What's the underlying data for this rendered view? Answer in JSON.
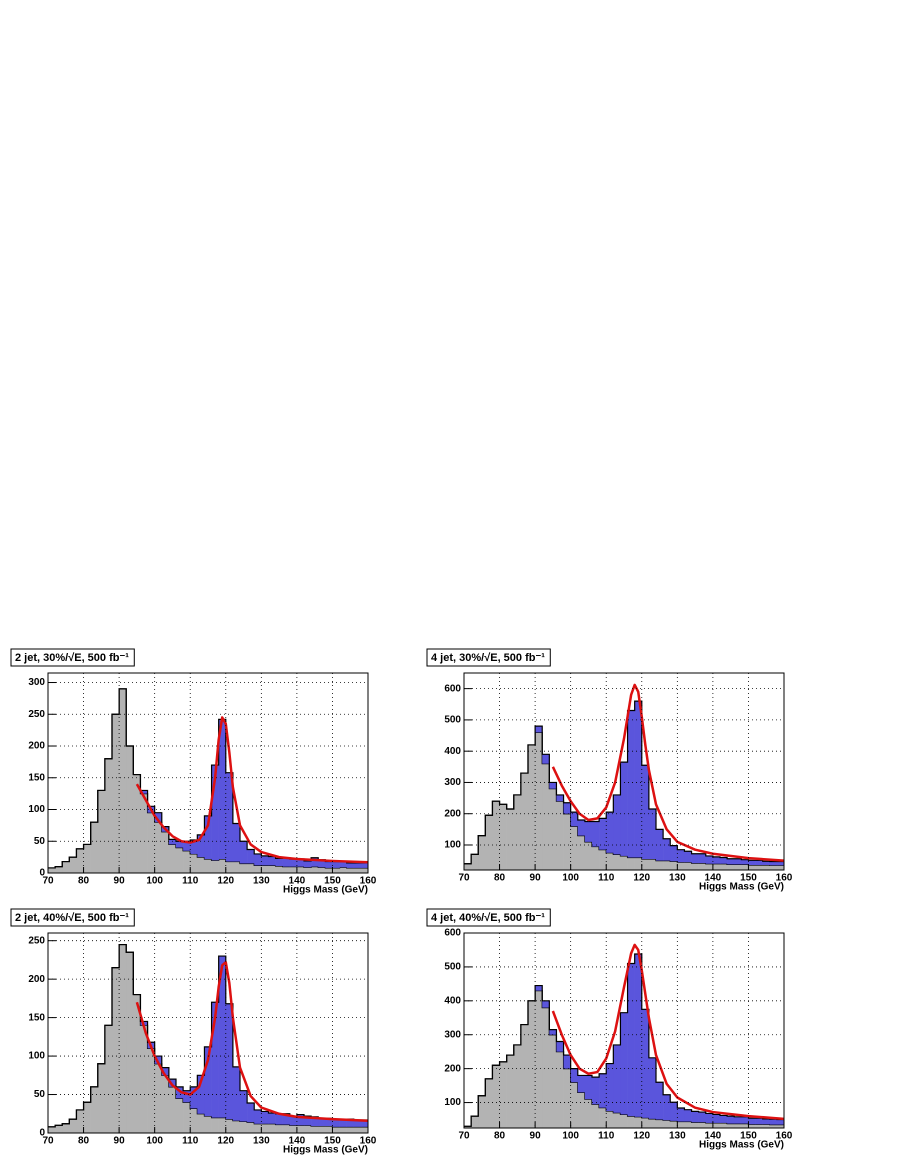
{
  "chart_data": [
    {
      "type": "histogram",
      "title": "2 jet, 30%/√E, 500 fb⁻¹",
      "x_label": "Higgs Mass (GeV)",
      "bins": [
        70,
        72,
        74,
        76,
        78,
        80,
        82,
        84,
        86,
        88,
        90,
        92,
        94,
        96,
        98,
        100,
        102,
        104,
        106,
        108,
        110,
        112,
        114,
        116,
        118,
        120,
        122,
        124,
        126,
        128,
        130,
        132,
        134,
        136,
        138,
        140,
        142,
        144,
        146,
        148,
        150,
        152,
        154,
        156,
        158,
        160
      ],
      "series": [
        {
          "color": "#b3b3b3",
          "values": [
            8,
            10,
            18,
            25,
            38,
            45,
            80,
            130,
            180,
            250,
            290,
            200,
            155,
            125,
            95,
            80,
            65,
            45,
            40,
            35,
            30,
            25,
            22,
            20,
            22,
            18,
            18,
            15,
            15,
            12,
            12,
            12,
            11,
            10,
            10,
            10,
            9,
            10,
            9,
            8,
            8,
            9,
            8,
            8,
            8
          ]
        },
        {
          "color": "#5a55dc",
          "stacked": true,
          "values": [
            0,
            0,
            0,
            0,
            0,
            0,
            0,
            0,
            0,
            0,
            0,
            0,
            0,
            5,
            10,
            15,
            8,
            8,
            10,
            15,
            22,
            35,
            68,
            150,
            220,
            140,
            60,
            35,
            22,
            18,
            15,
            14,
            12,
            14,
            12,
            12,
            10,
            14,
            12,
            10,
            10,
            9,
            8,
            8,
            8
          ]
        }
      ],
      "fit": {
        "color": "#dd1111",
        "x": [
          95,
          97.5,
          100,
          102.5,
          105,
          107.5,
          110,
          112.5,
          115,
          117,
          118,
          119,
          120,
          121,
          122,
          124,
          127,
          130,
          135,
          140,
          150,
          160
        ],
        "values": [
          140,
          115,
          90,
          72,
          58,
          50,
          48,
          52,
          75,
          150,
          210,
          245,
          235,
          190,
          135,
          75,
          45,
          33,
          25,
          22,
          19,
          17
        ]
      },
      "xlim": [
        70,
        160
      ],
      "ylim": [
        0,
        315
      ],
      "xticks": [
        70,
        80,
        90,
        100,
        110,
        120,
        130,
        140,
        150,
        160
      ],
      "yticks": [
        0,
        50,
        100,
        150,
        200,
        250,
        300
      ],
      "grid": true
    },
    {
      "type": "histogram",
      "title": "4 jet, 30%/√E, 500 fb⁻¹",
      "x_label": "Higgs Mass (GeV)",
      "bins": [
        70,
        72,
        74,
        76,
        78,
        80,
        82,
        84,
        86,
        88,
        90,
        92,
        94,
        96,
        98,
        100,
        102,
        104,
        106,
        108,
        110,
        112,
        114,
        116,
        118,
        120,
        122,
        124,
        126,
        128,
        130,
        132,
        134,
        136,
        138,
        140,
        142,
        144,
        146,
        148,
        150,
        152,
        154,
        156,
        158,
        160
      ],
      "series": [
        {
          "color": "#b3b3b3",
          "values": [
            40,
            70,
            130,
            195,
            240,
            230,
            215,
            260,
            330,
            420,
            460,
            360,
            280,
            240,
            200,
            160,
            130,
            110,
            95,
            85,
            75,
            70,
            65,
            60,
            60,
            55,
            55,
            50,
            50,
            48,
            45,
            45,
            42,
            42,
            40,
            40,
            40,
            38,
            38,
            38,
            36,
            36,
            36,
            35,
            35
          ]
        },
        {
          "color": "#5a55dc",
          "stacked": true,
          "values": [
            0,
            0,
            0,
            0,
            0,
            0,
            0,
            0,
            0,
            0,
            20,
            30,
            20,
            20,
            35,
            45,
            50,
            65,
            80,
            100,
            130,
            190,
            300,
            470,
            500,
            300,
            160,
            100,
            70,
            50,
            40,
            35,
            30,
            30,
            25,
            22,
            20,
            18,
            18,
            15,
            15,
            15,
            12,
            12,
            12
          ]
        }
      ],
      "fit": {
        "color": "#dd1111",
        "x": [
          95,
          97.5,
          100,
          102.5,
          105,
          107.5,
          110,
          112.5,
          115,
          117,
          118,
          119,
          120,
          121,
          122,
          124,
          127,
          130,
          135,
          140,
          150,
          160
        ],
        "values": [
          350,
          290,
          240,
          200,
          180,
          185,
          220,
          300,
          440,
          580,
          612,
          590,
          510,
          420,
          340,
          230,
          150,
          110,
          85,
          72,
          58,
          50
        ]
      },
      "xlim": [
        70,
        160
      ],
      "ylim": [
        20,
        650
      ],
      "xticks": [
        70,
        80,
        90,
        100,
        110,
        120,
        130,
        140,
        150,
        160
      ],
      "yticks": [
        100,
        200,
        300,
        400,
        500,
        600
      ],
      "grid": true
    },
    {
      "type": "histogram",
      "title": "2 jet, 40%/√E, 500 fb⁻¹",
      "x_label": "Higgs Mass (GeV)",
      "bins": [
        70,
        72,
        74,
        76,
        78,
        80,
        82,
        84,
        86,
        88,
        90,
        92,
        94,
        96,
        98,
        100,
        102,
        104,
        106,
        108,
        110,
        112,
        114,
        116,
        118,
        120,
        122,
        124,
        126,
        128,
        130,
        132,
        134,
        136,
        138,
        140,
        142,
        144,
        146,
        148,
        150,
        152,
        154,
        156,
        158,
        160
      ],
      "series": [
        {
          "color": "#b3b3b3",
          "values": [
            8,
            10,
            12,
            18,
            30,
            40,
            60,
            90,
            140,
            215,
            245,
            235,
            180,
            140,
            110,
            90,
            75,
            60,
            45,
            40,
            32,
            25,
            22,
            20,
            20,
            18,
            16,
            15,
            14,
            12,
            12,
            12,
            11,
            11,
            10,
            10,
            10,
            9,
            9,
            9,
            8,
            8,
            8,
            8,
            8
          ]
        },
        {
          "color": "#5a55dc",
          "stacked": true,
          "values": [
            0,
            0,
            0,
            0,
            0,
            0,
            0,
            0,
            0,
            0,
            0,
            0,
            0,
            5,
            8,
            10,
            10,
            10,
            15,
            15,
            28,
            50,
            90,
            150,
            210,
            150,
            70,
            40,
            25,
            18,
            16,
            14,
            14,
            14,
            12,
            14,
            12,
            12,
            10,
            10,
            10,
            10,
            10,
            9,
            9
          ]
        }
      ],
      "fit": {
        "color": "#dd1111",
        "x": [
          95,
          97.5,
          100,
          102.5,
          105,
          107.5,
          110,
          112.5,
          115,
          117,
          118,
          119,
          120,
          121,
          122,
          124,
          127,
          130,
          135,
          140,
          150,
          160
        ],
        "values": [
          170,
          130,
          100,
          78,
          62,
          53,
          50,
          60,
          95,
          150,
          190,
          218,
          222,
          195,
          150,
          85,
          48,
          33,
          25,
          21,
          18,
          16
        ]
      },
      "xlim": [
        70,
        160
      ],
      "ylim": [
        0,
        260
      ],
      "xticks": [
        70,
        80,
        90,
        100,
        110,
        120,
        130,
        140,
        150,
        160
      ],
      "yticks": [
        0,
        50,
        100,
        150,
        200,
        250
      ],
      "grid": true
    },
    {
      "type": "histogram",
      "title": "4 jet, 40%/√E, 500 fb⁻¹",
      "x_label": "Higgs Mass (GeV)",
      "bins": [
        70,
        72,
        74,
        76,
        78,
        80,
        82,
        84,
        86,
        88,
        90,
        92,
        94,
        96,
        98,
        100,
        102,
        104,
        106,
        108,
        110,
        112,
        114,
        116,
        118,
        120,
        122,
        124,
        126,
        128,
        130,
        132,
        134,
        136,
        138,
        140,
        142,
        144,
        146,
        148,
        150,
        152,
        154,
        156,
        158,
        160
      ],
      "series": [
        {
          "color": "#b3b3b3",
          "values": [
            30,
            60,
            120,
            170,
            210,
            220,
            240,
            270,
            330,
            400,
            430,
            380,
            300,
            250,
            200,
            160,
            130,
            110,
            95,
            85,
            75,
            70,
            65,
            60,
            58,
            55,
            52,
            50,
            48,
            46,
            44,
            44,
            42,
            42,
            40,
            40,
            40,
            38,
            38,
            38,
            36,
            36,
            36,
            35,
            35
          ]
        },
        {
          "color": "#5a55dc",
          "stacked": true,
          "values": [
            0,
            0,
            0,
            0,
            0,
            0,
            0,
            0,
            0,
            0,
            15,
            20,
            15,
            30,
            40,
            40,
            50,
            70,
            80,
            100,
            140,
            200,
            300,
            450,
            480,
            320,
            180,
            110,
            75,
            55,
            40,
            35,
            32,
            30,
            28,
            25,
            22,
            22,
            20,
            20,
            18,
            18,
            16,
            16,
            15
          ]
        }
      ],
      "fit": {
        "color": "#dd1111",
        "x": [
          95,
          97.5,
          100,
          102.5,
          105,
          107.5,
          110,
          112.5,
          115,
          117,
          118,
          119,
          120,
          121,
          122,
          124,
          127,
          130,
          135,
          140,
          150,
          160
        ],
        "values": [
          370,
          300,
          240,
          200,
          185,
          190,
          230,
          310,
          440,
          540,
          565,
          550,
          490,
          420,
          350,
          240,
          155,
          115,
          85,
          72,
          60,
          52
        ]
      },
      "xlim": [
        70,
        160
      ],
      "ylim": [
        25,
        600
      ],
      "xticks": [
        70,
        80,
        90,
        100,
        110,
        120,
        130,
        140,
        150,
        160
      ],
      "yticks": [
        100,
        200,
        300,
        400,
        500,
        600
      ],
      "grid": true
    }
  ]
}
